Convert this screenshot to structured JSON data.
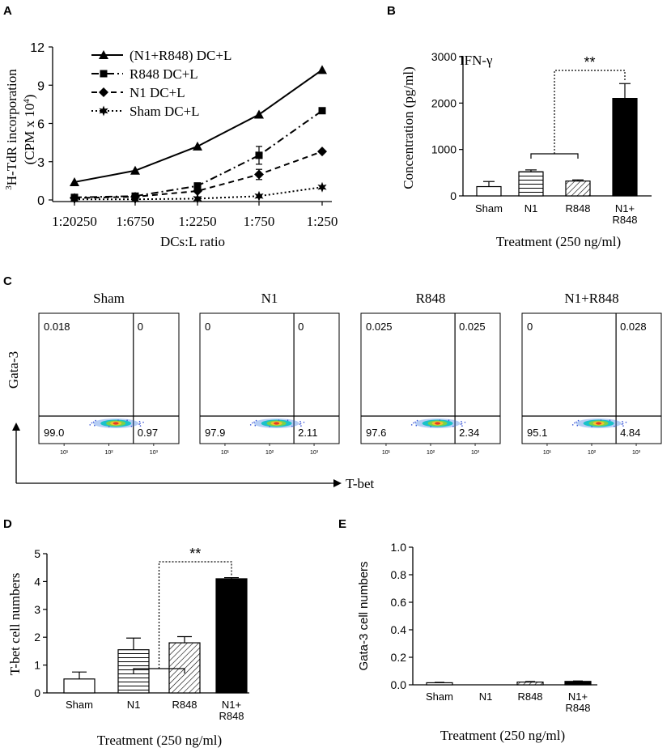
{
  "panel_letters": {
    "a": "A",
    "b": "B",
    "c": "C",
    "d": "D",
    "e": "E"
  },
  "chart_data": [
    {
      "id": "A",
      "type": "line",
      "title": "",
      "xlabel": "DCs:L ratio",
      "ylabel_line1": "3H-TdR incorporation",
      "ylabel_line2": "(CPM x 104)",
      "ylabel_sup1": "3",
      "ylabel_rest1": "H-TdR incorporation",
      "ylabel_pre2": "(CPM x 10",
      "ylabel_sup2": "4",
      "ylabel_post2": ")",
      "categories": [
        "1:20250",
        "1:6750",
        "1:2250",
        "1:750",
        "1:250"
      ],
      "ylim": [
        0,
        12
      ],
      "yticks": [
        0,
        3,
        6,
        9,
        12
      ],
      "series": [
        {
          "name": "(N1+R848) DC+L",
          "marker": "triangle",
          "dash": "solid",
          "values": [
            1.4,
            2.3,
            4.2,
            6.7,
            10.2
          ],
          "errors": [
            0,
            0,
            0,
            0,
            0
          ]
        },
        {
          "name": "R848 DC+L",
          "marker": "square",
          "dash": "dashdot",
          "values": [
            0.2,
            0.3,
            1.1,
            3.5,
            7.0
          ],
          "errors": [
            0,
            0,
            0,
            0.7,
            0
          ]
        },
        {
          "name": "N1 DC+L",
          "marker": "diamond",
          "dash": "dashed",
          "values": [
            0.15,
            0.25,
            0.7,
            2.0,
            3.8
          ],
          "errors": [
            0,
            0,
            0,
            0.4,
            0
          ]
        },
        {
          "name": "Sham DC+L",
          "marker": "star",
          "dash": "dotted",
          "values": [
            0.05,
            0.05,
            0.1,
            0.3,
            1.0
          ],
          "errors": [
            0,
            0,
            0,
            0,
            0
          ]
        }
      ],
      "legend": "top-left"
    },
    {
      "id": "B",
      "type": "bar",
      "annotation": "IFN-γ",
      "xlabel": "Treatment (250 ng/ml)",
      "ylabel": "Concentration (pg/ml)",
      "categories": [
        "Sham",
        "N1",
        "R848",
        "N1+\nR848"
      ],
      "category_labels": [
        [
          "Sham"
        ],
        [
          "N1"
        ],
        [
          "R848"
        ],
        [
          "N1+",
          "R848"
        ]
      ],
      "values": [
        200,
        520,
        320,
        2100
      ],
      "errors": [
        110,
        40,
        25,
        320
      ],
      "patterns": [
        "none",
        "hstripes",
        "diagonal",
        "solid"
      ],
      "ylim": [
        0,
        3000
      ],
      "yticks": [
        0,
        1000,
        2000,
        3000
      ],
      "significance": "**"
    },
    {
      "id": "D",
      "type": "bar",
      "xlabel": "Treatment (250 ng/ml)",
      "ylabel": "T-bet cell numbers",
      "categories": [
        "Sham",
        "N1",
        "R848",
        "N1+\nR848"
      ],
      "category_labels": [
        [
          "Sham"
        ],
        [
          "N1"
        ],
        [
          "R848"
        ],
        [
          "N1+",
          "R848"
        ]
      ],
      "values": [
        0.5,
        1.55,
        1.8,
        4.1
      ],
      "errors": [
        0.25,
        0.42,
        0.22,
        0.04
      ],
      "patterns": [
        "none",
        "hstripes",
        "diagonal",
        "solid"
      ],
      "ylim": [
        0,
        5
      ],
      "yticks": [
        "0",
        "1",
        "2",
        "3",
        "4",
        "5"
      ],
      "significance": "**"
    },
    {
      "id": "E",
      "type": "bar",
      "xlabel": "Treatment (250 ng/ml)",
      "ylabel": "Gata-3 cell numbers",
      "categories": [
        "Sham",
        "N1",
        "R848",
        "N1+\nR848"
      ],
      "category_labels": [
        [
          "Sham"
        ],
        [
          "N1"
        ],
        [
          "R848"
        ],
        [
          "N1+",
          "R848"
        ]
      ],
      "values": [
        0.015,
        0.0,
        0.02,
        0.025
      ],
      "errors": [
        0.003,
        0,
        0.004,
        0.003
      ],
      "patterns": [
        "none",
        "hstripes",
        "diagonal",
        "solid"
      ],
      "ylim": [
        0,
        1.0
      ],
      "yticks": [
        "0.0",
        "0.2",
        "0.4",
        "0.6",
        "0.8",
        "1.0"
      ]
    }
  ],
  "flow": {
    "xlabel": "T-bet",
    "ylabel": "Gata-3",
    "ticks": [
      "10¹",
      "10²",
      "10³"
    ],
    "panels": [
      {
        "title": "Sham",
        "ul": "0.018",
        "ur": "0",
        "ll": "99.0",
        "lr": "0.97"
      },
      {
        "title": "N1",
        "ul": "0",
        "ur": "0",
        "ll": "97.9",
        "lr": "2.11"
      },
      {
        "title": "R848",
        "ul": "0.025",
        "ur": "0.025",
        "ll": "97.6",
        "lr": "2.34"
      },
      {
        "title": "N1+R848",
        "ul": "0",
        "ur": "0.028",
        "ll": "95.1",
        "lr": "4.84"
      }
    ]
  }
}
